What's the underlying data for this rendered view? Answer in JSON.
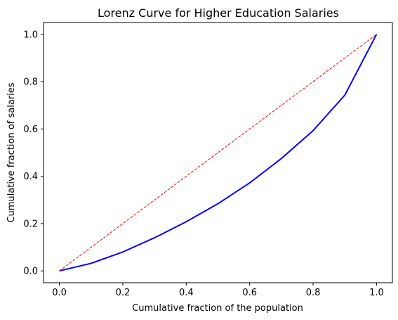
{
  "chart_data": {
    "type": "line",
    "title": "Lorenz Curve for Higher Education Salaries",
    "xlabel": "Cumulative fraction of the population",
    "ylabel": "Cumulative fraction of salaries",
    "xlim": [
      -0.05,
      1.05
    ],
    "ylim": [
      -0.05,
      1.05
    ],
    "grid": false,
    "x_ticks": [
      0.0,
      0.2,
      0.4,
      0.6,
      0.8,
      1.0
    ],
    "y_ticks": [
      0.0,
      0.2,
      0.4,
      0.6,
      0.8,
      1.0
    ],
    "series": [
      {
        "x": [
          0.0,
          0.1,
          0.2,
          0.3,
          0.4,
          0.5,
          0.6,
          0.7,
          0.8,
          0.9,
          1.0
        ],
        "y": [
          0.0,
          0.032,
          0.08,
          0.14,
          0.208,
          0.284,
          0.372,
          0.475,
          0.593,
          0.743,
          1.0
        ],
        "color": "#0000ff",
        "style": "solid"
      },
      {
        "x": [
          0.0,
          1.0
        ],
        "y": [
          0.0,
          1.0
        ],
        "color": "#ff0000",
        "style": "dashed"
      }
    ]
  }
}
